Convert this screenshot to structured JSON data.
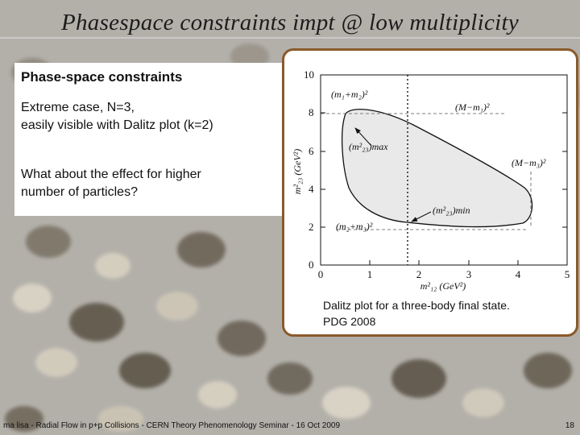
{
  "slide": {
    "title": "Phasespace constraints impt @ low multiplicity",
    "heading": "Phase-space constraints",
    "body_line1": "Extreme case, N=3,",
    "body_line2": "easily visible with Dalitz plot (k=2)",
    "body_line3": "What about the effect for higher",
    "body_line4": "number of particles?",
    "caption_line1": "Dalitz plot for a three-body final state.",
    "caption_line2": "PDG 2008",
    "footer": "ma lisa - Radial Flow in p+p Collisions - CERN Theory Phenomenology Seminar - 16 Oct 2009",
    "page_number": "18"
  },
  "figure": {
    "x_ticks": [
      "0",
      "1",
      "2",
      "3",
      "4",
      "5"
    ],
    "y_ticks": [
      "0",
      "2",
      "4",
      "6",
      "8",
      "10"
    ],
    "x_axis_label": "m²₁₂  (GeV²)",
    "y_axis_label": "m²₂₃  (GeV²)",
    "label_top_left": "(m₁+m₂)²",
    "label_top_right": "(M−m₁)²",
    "label_right": "(M−m₃)²",
    "label_max": "(m²₂₃)max",
    "label_min": "(m²₂₃)min",
    "label_bottom_left": "(m₂+m₃)²"
  },
  "colors": {
    "frame_border": "#8a5a2a",
    "region_fill": "#e9e9e9"
  }
}
